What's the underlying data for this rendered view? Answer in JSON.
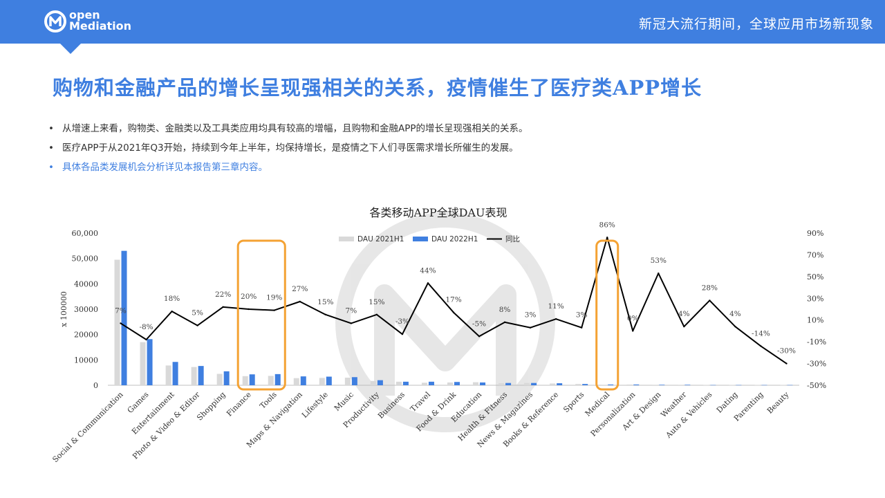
{
  "header": {
    "logo_line1": "open",
    "logo_line2": "Mediation",
    "title": "新冠大流行期间，全球应用市场新现象"
  },
  "page_title": "购物和金融产品的增长呈现强相关的关系，疫情催生了医疗类APP增长",
  "bullets": [
    "从增速上来看，购物类、金融类以及工具类应用均具有较高的增幅，且购物和金融APP的增长呈现强相关的关系。",
    "医疗APP于从2021年Q3开始，持续到今年上半年，均保持增长，是疫情之下人们寻医需求增长所催生的发展。",
    "具体各品类发展机会分析详见本报告第三章内容。"
  ],
  "bullet_symbol": "•",
  "colors": {
    "brand": "#3f7fe0",
    "series_2021": "#d9d9d9",
    "series_2022": "#3f7fe0",
    "line": "#000000",
    "highlight": "#f4a233"
  },
  "chart_data": {
    "type": "bar",
    "title": "各类移动APP全球DAU表现",
    "ylabel": "x 100000",
    "ylim": [
      0,
      60000
    ],
    "y_ticks": [
      "0",
      "10000",
      "20000",
      "30000",
      "40000",
      "50,000",
      "60,000"
    ],
    "y2lim": [
      -50,
      90
    ],
    "y2_ticks": [
      "-50%",
      "-30%",
      "-10%",
      "10%",
      "30%",
      "50%",
      "70%",
      "90%"
    ],
    "categories": [
      "Social & Communication",
      "Games",
      "Entertainment",
      "Photo & Video & Editor",
      "Shopping",
      "Finance",
      "Tools",
      "Maps & Navigation",
      "Lifestyle",
      "Music",
      "Productivity",
      "Business",
      "Travel",
      "Food & Drink",
      "Education",
      "Health & Fitness",
      "News & Magazines",
      "Books & Reference",
      "Sports",
      "Medical",
      "Personalization",
      "Art & Design",
      "Weather",
      "Auto & Vehicles",
      "Dating",
      "Parenting",
      "Beauty"
    ],
    "series": [
      {
        "name": "DAU 2021H1",
        "type": "bar",
        "values": [
          49500,
          17000,
          7800,
          7200,
          4500,
          3600,
          3700,
          2800,
          2900,
          3000,
          1700,
          1400,
          1000,
          1100,
          1200,
          800,
          900,
          700,
          500,
          200,
          300,
          200,
          200,
          100,
          100,
          100,
          100
        ]
      },
      {
        "name": "DAU 2022H1",
        "type": "bar",
        "values": [
          53000,
          18200,
          9200,
          7600,
          5500,
          4300,
          4400,
          3500,
          3400,
          3200,
          2000,
          1400,
          1400,
          1300,
          1100,
          900,
          900,
          800,
          500,
          300,
          300,
          200,
          200,
          100,
          100,
          100,
          100
        ]
      },
      {
        "name": "同比",
        "type": "line",
        "axis": "right",
        "values": [
          7,
          -8,
          18,
          5,
          22,
          20,
          19,
          27,
          15,
          7,
          15,
          -3,
          44,
          17,
          -5,
          8,
          3,
          11,
          3,
          86,
          0,
          53,
          4,
          28,
          4,
          -14,
          -30
        ]
      }
    ],
    "point_labels": [
      "7%",
      "-8%",
      "18%",
      "5%",
      "22%",
      "20%",
      "19%",
      "27%",
      "15%",
      "7%",
      "15%",
      "-3%",
      "44%",
      "17%",
      "-5%",
      "8%",
      "3%",
      "11%",
      "3%",
      "86%",
      "0%",
      "53%",
      "4%",
      "28%",
      "4%",
      "-14%",
      "-30%"
    ],
    "highlighted_categories": [
      [
        "Finance",
        "Tools"
      ],
      [
        "Medical"
      ]
    ],
    "legend_position": "top-center",
    "grid": false
  }
}
